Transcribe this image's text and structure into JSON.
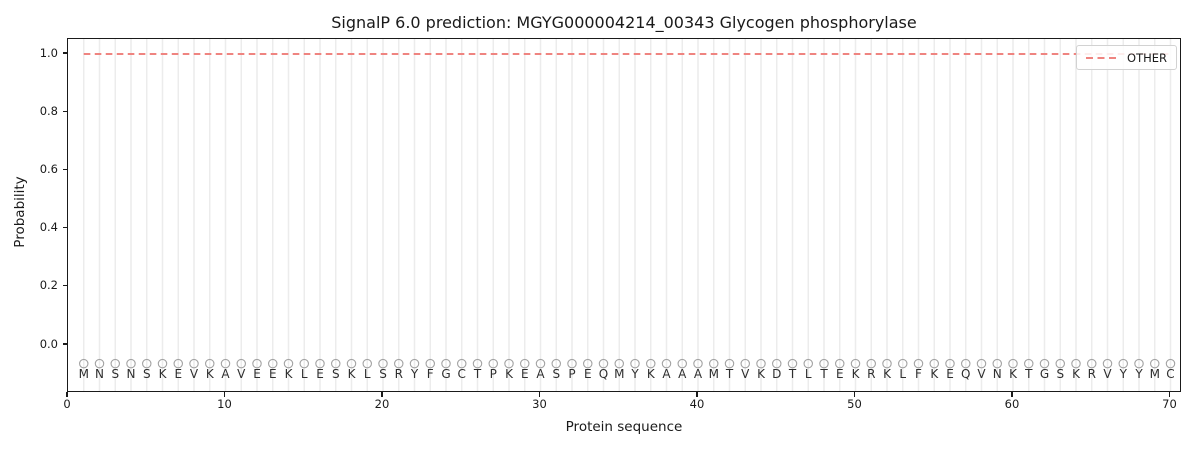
{
  "colors": {
    "background": "#ffffff",
    "series_other": "#ef8480",
    "gridline": "#ececec",
    "marker": "#a3a3a3",
    "spine": "#1a1a1a",
    "text": "#1a1a1a",
    "legend_border": "#d2d2d2"
  },
  "chart_data": {
    "type": "line",
    "title": "SignalP 6.0 prediction: MGYG000004214_00343 Glycogen phosphorylase",
    "xlabel": "Protein sequence",
    "ylabel": "Probability",
    "xticks": [
      0,
      10,
      20,
      30,
      40,
      50,
      60,
      70
    ],
    "yticks": [
      "0.0",
      "0.2",
      "0.4",
      "0.6",
      "0.8",
      "1.0"
    ],
    "xlim": [
      0,
      70.75
    ],
    "ylim": [
      -0.17,
      1.05
    ],
    "grid": "vertical gridline at every residue position, no horizontal gridlines",
    "legend": {
      "position": "upper-right",
      "entries": [
        {
          "label": "OTHER",
          "style": "dashed",
          "color": "#ef8480"
        }
      ]
    },
    "sequence": [
      "M",
      "N",
      "S",
      "N",
      "S",
      "K",
      "E",
      "V",
      "K",
      "A",
      "V",
      "E",
      "E",
      "K",
      "L",
      "E",
      "S",
      "K",
      "L",
      "S",
      "R",
      "Y",
      "F",
      "G",
      "C",
      "T",
      "P",
      "K",
      "E",
      "A",
      "S",
      "P",
      "E",
      "Q",
      "M",
      "Y",
      "K",
      "A",
      "A",
      "A",
      "M",
      "T",
      "V",
      "K",
      "D",
      "T",
      "L",
      "T",
      "E",
      "K",
      "R",
      "K",
      "L",
      "F",
      "K",
      "E",
      "Q",
      "V",
      "N",
      "K",
      "T",
      "G",
      "S",
      "K",
      "R",
      "V",
      "Y",
      "Y",
      "M",
      "C"
    ],
    "series": [
      {
        "name": "OTHER",
        "style": "dashed",
        "color": "#ef8480",
        "x_start": 1,
        "values": [
          1.0,
          1.0,
          1.0,
          1.0,
          1.0,
          1.0,
          1.0,
          1.0,
          1.0,
          1.0,
          1.0,
          1.0,
          1.0,
          1.0,
          1.0,
          1.0,
          1.0,
          1.0,
          1.0,
          1.0,
          1.0,
          1.0,
          1.0,
          1.0,
          1.0,
          1.0,
          1.0,
          1.0,
          1.0,
          1.0,
          1.0,
          1.0,
          1.0,
          1.0,
          1.0,
          1.0,
          1.0,
          1.0,
          1.0,
          1.0,
          1.0,
          1.0,
          1.0,
          1.0,
          1.0,
          1.0,
          1.0,
          1.0,
          1.0,
          1.0,
          1.0,
          1.0,
          1.0,
          1.0,
          1.0,
          1.0,
          1.0,
          1.0,
          1.0,
          1.0,
          1.0,
          1.0,
          1.0,
          1.0,
          1.0,
          1.0,
          1.0,
          1.0,
          1.0,
          1.0
        ]
      }
    ],
    "residue_markers": {
      "shape": "open-circle",
      "color": "#a3a3a3",
      "y": -0.064
    }
  }
}
